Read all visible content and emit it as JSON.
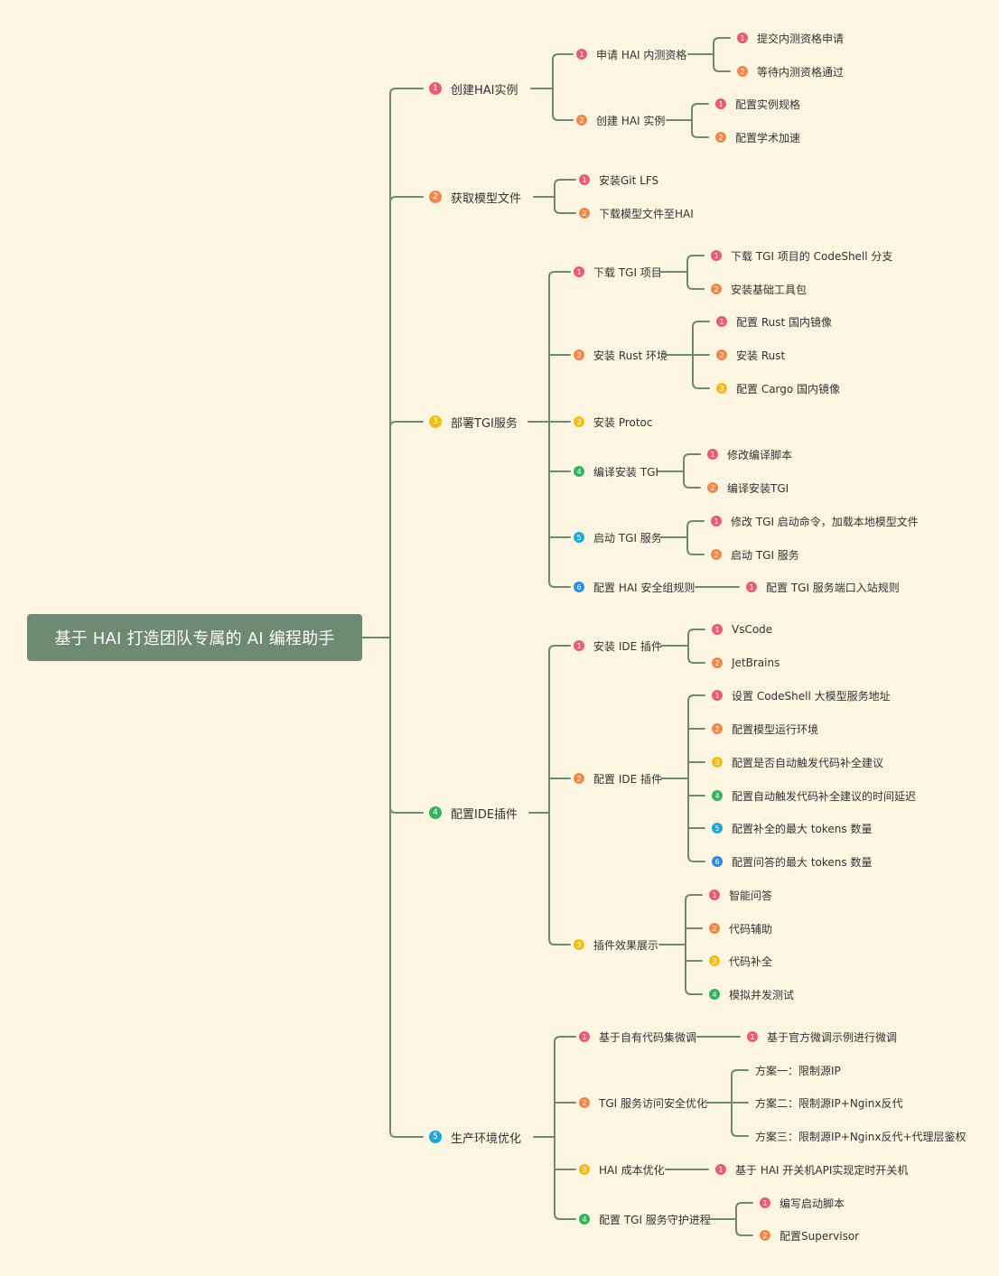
{
  "root": {
    "label": "基于 HAI 打造团队专属的 AI 编程助手"
  },
  "badge_colors": {
    "1": "#e85d6f",
    "2": "#f0884a",
    "3": "#f2bd18",
    "4": "#34b25e",
    "5": "#1ea7dc",
    "6": "#2f8be6"
  },
  "branches": [
    {
      "label": "创建HAI实例",
      "num": 1,
      "children": [
        {
          "label": "申请 HAI 内测资格",
          "num": 1,
          "children": [
            {
              "label": "提交内测资格申请",
              "num": 1
            },
            {
              "label": "等待内测资格通过",
              "num": 2
            }
          ]
        },
        {
          "label": "创建 HAI 实例",
          "num": 2,
          "children": [
            {
              "label": "配置实例规格",
              "num": 1
            },
            {
              "label": "配置学术加速",
              "num": 2
            }
          ]
        }
      ]
    },
    {
      "label": "获取模型文件",
      "num": 2,
      "children": [
        {
          "label": "安装Git LFS",
          "num": 1
        },
        {
          "label": "下载模型文件至HAI",
          "num": 2
        }
      ]
    },
    {
      "label": "部署TGI服务",
      "num": 3,
      "children": [
        {
          "label": "下载 TGI 项目",
          "num": 1,
          "children": [
            {
              "label": "下载 TGI 项目的 CodeShell 分支",
              "num": 1
            },
            {
              "label": "安装基础工具包",
              "num": 2
            }
          ]
        },
        {
          "label": "安装 Rust 环境",
          "num": 2,
          "children": [
            {
              "label": "配置 Rust 国内镜像",
              "num": 1
            },
            {
              "label": "安装 Rust",
              "num": 2
            },
            {
              "label": "配置 Cargo 国内镜像",
              "num": 3
            }
          ]
        },
        {
          "label": "安装 Protoc",
          "num": 3
        },
        {
          "label": "编译安装 TGI",
          "num": 4,
          "children": [
            {
              "label": "修改编译脚本",
              "num": 1
            },
            {
              "label": "编译安装TGI",
              "num": 2
            }
          ]
        },
        {
          "label": "启动 TGI 服务",
          "num": 5,
          "children": [
            {
              "label": "修改 TGI 启动命令，加载本地模型文件",
              "num": 1
            },
            {
              "label": "启动 TGI 服务",
              "num": 2
            }
          ]
        },
        {
          "label": "配置 HAI 安全组规则",
          "num": 6,
          "children": [
            {
              "label": "配置 TGI 服务端口入站规则",
              "num": 1
            }
          ]
        }
      ]
    },
    {
      "label": "配置IDE插件",
      "num": 4,
      "children": [
        {
          "label": "安装 IDE 插件",
          "num": 1,
          "children": [
            {
              "label": "VsCode",
              "num": 1
            },
            {
              "label": "JetBrains",
              "num": 2
            }
          ]
        },
        {
          "label": "配置 IDE 插件",
          "num": 2,
          "children": [
            {
              "label": "设置 CodeShell 大模型服务地址",
              "num": 1
            },
            {
              "label": "配置模型运行环境",
              "num": 2
            },
            {
              "label": "配置是否自动触发代码补全建议",
              "num": 3
            },
            {
              "label": "配置自动触发代码补全建议的时间延迟",
              "num": 4
            },
            {
              "label": "配置补全的最大 tokens 数量",
              "num": 5
            },
            {
              "label": "配置问答的最大 tokens 数量",
              "num": 6
            }
          ]
        },
        {
          "label": "插件效果展示",
          "num": 3,
          "children": [
            {
              "label": "智能问答",
              "num": 1
            },
            {
              "label": "代码辅助",
              "num": 2
            },
            {
              "label": "代码补全",
              "num": 3
            },
            {
              "label": "模拟并发测试",
              "num": 4
            }
          ]
        }
      ]
    },
    {
      "label": "生产环境优化",
      "num": 5,
      "children": [
        {
          "label": "基于自有代码集微调",
          "num": 1,
          "children": [
            {
              "label": "基于官方微调示例进行微调",
              "num": 1
            }
          ]
        },
        {
          "label": "TGI 服务访问安全优化",
          "num": 2,
          "children": [
            {
              "label": "方案一：限制源IP"
            },
            {
              "label": "方案二：限制源IP+Nginx反代"
            },
            {
              "label": "方案三：限制源IP+Nginx反代+代理层鉴权"
            }
          ]
        },
        {
          "label": "HAI 成本优化",
          "num": 3,
          "children": [
            {
              "label": "基于 HAI 开关机API实现定时开关机",
              "num": 1
            }
          ]
        },
        {
          "label": "配置 TGI 服务守护进程",
          "num": 4,
          "children": [
            {
              "label": "编写启动脚本",
              "num": 1
            },
            {
              "label": "配置Supervisor",
              "num": 2
            }
          ]
        }
      ]
    }
  ]
}
